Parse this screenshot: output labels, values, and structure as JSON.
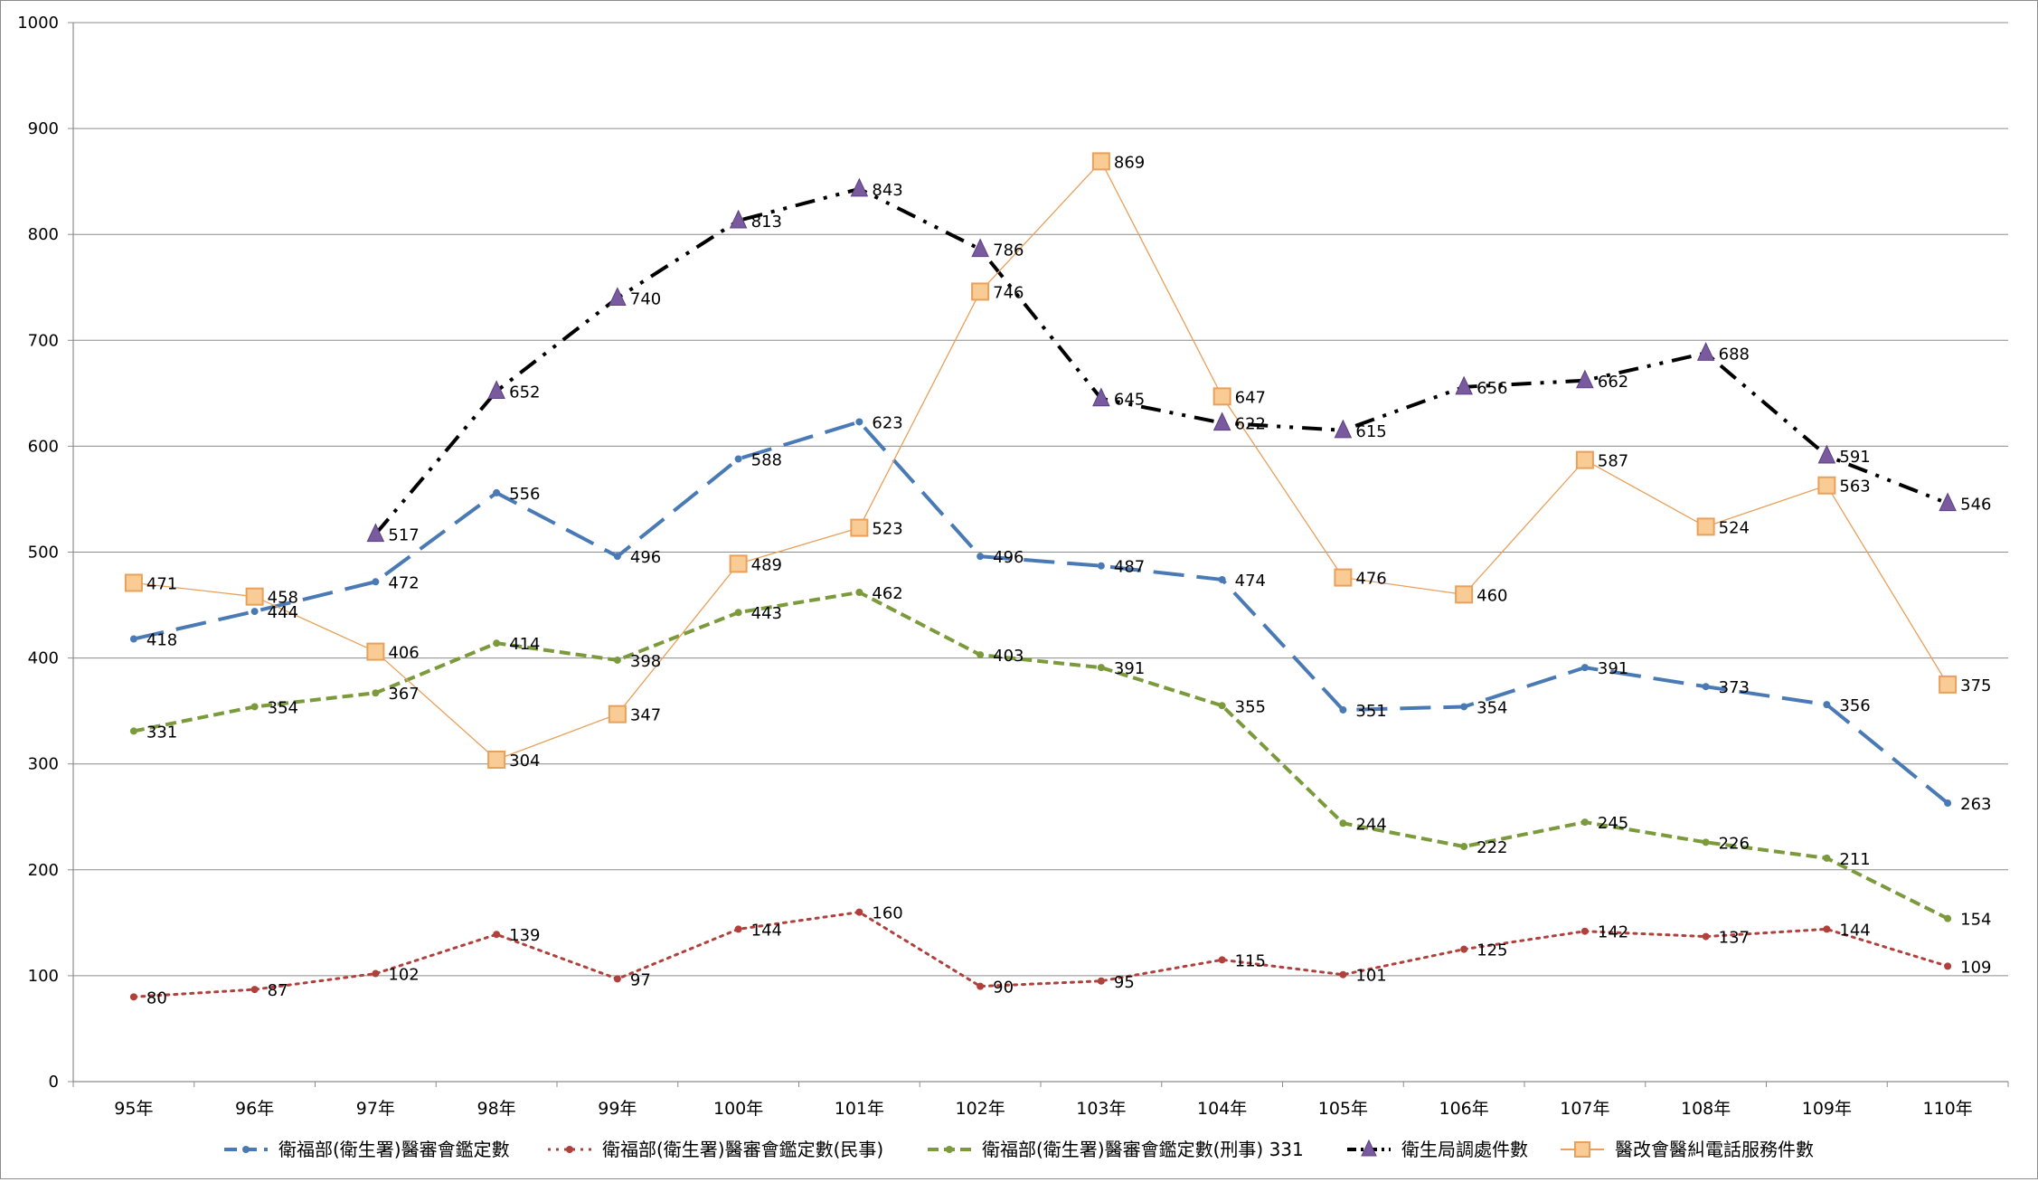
{
  "chart_data": {
    "type": "line",
    "title": "",
    "xlabel": "",
    "ylabel": "",
    "ylim": [
      0,
      1000
    ],
    "yticks": [
      0,
      100,
      200,
      300,
      400,
      500,
      600,
      700,
      800,
      900,
      1000
    ],
    "grid": true,
    "legend_position": "bottom",
    "categories": [
      "95年",
      "96年",
      "97年",
      "98年",
      "99年",
      "100年",
      "101年",
      "102年",
      "103年",
      "104年",
      "105年",
      "106年",
      "107年",
      "108年",
      "109年",
      "110年"
    ],
    "series": [
      {
        "name": "衛福部(衛生署)醫審會鑑定數",
        "color": "#4a7ab5",
        "dash": "long-dash",
        "marker": "dot",
        "values": [
          418,
          444,
          472,
          556,
          496,
          588,
          623,
          496,
          487,
          474,
          351,
          354,
          391,
          373,
          356,
          263
        ]
      },
      {
        "name": "衛福部(衛生署)醫審會鑑定數(民事)",
        "color": "#b0403c",
        "dash": "dotted",
        "marker": "dot",
        "values": [
          80,
          87,
          102,
          139,
          97,
          144,
          160,
          90,
          95,
          115,
          101,
          125,
          142,
          137,
          144,
          109
        ]
      },
      {
        "name": "衛福部(衛生署)醫審會鑑定數(刑事) 331",
        "color": "#7a9a3c",
        "dash": "short-dash",
        "marker": "dot",
        "values": [
          331,
          354,
          367,
          414,
          398,
          443,
          462,
          403,
          391,
          355,
          244,
          222,
          245,
          226,
          211,
          154
        ]
      },
      {
        "name": "衛生局調處件數",
        "color": "#000000",
        "marker_color": "#7a5a9e",
        "dash": "dash-dot-dot",
        "marker": "triangle",
        "values": [
          null,
          null,
          517,
          652,
          740,
          813,
          843,
          786,
          645,
          622,
          615,
          656,
          662,
          688,
          591,
          546
        ]
      },
      {
        "name": "醫改會醫糾電話服務件數",
        "color": "#e8a05a",
        "marker_fill": "#f8cc94",
        "dash": "solid",
        "marker": "square",
        "values": [
          471,
          458,
          406,
          304,
          347,
          489,
          523,
          746,
          869,
          647,
          476,
          460,
          587,
          524,
          563,
          375
        ]
      }
    ]
  }
}
